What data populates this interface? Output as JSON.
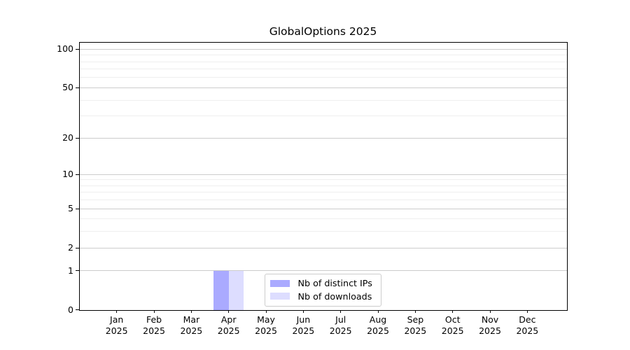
{
  "window": {
    "background_color": "#ffffff"
  },
  "chart_data": {
    "type": "bar",
    "title": "GlobalOptions 2025",
    "xlabel": "",
    "ylabel": "",
    "categories": [
      {
        "month": "Jan",
        "year": "2025"
      },
      {
        "month": "Feb",
        "year": "2025"
      },
      {
        "month": "Mar",
        "year": "2025"
      },
      {
        "month": "Apr",
        "year": "2025"
      },
      {
        "month": "May",
        "year": "2025"
      },
      {
        "month": "Jun",
        "year": "2025"
      },
      {
        "month": "Jul",
        "year": "2025"
      },
      {
        "month": "Aug",
        "year": "2025"
      },
      {
        "month": "Sep",
        "year": "2025"
      },
      {
        "month": "Oct",
        "year": "2025"
      },
      {
        "month": "Nov",
        "year": "2025"
      },
      {
        "month": "Dec",
        "year": "2025"
      }
    ],
    "series": [
      {
        "name": "Nb of distinct IPs",
        "color": "#aaaaff",
        "values": [
          0,
          0,
          0,
          1,
          0,
          0,
          0,
          0,
          0,
          0,
          0,
          0
        ]
      },
      {
        "name": "Nb of downloads",
        "color": "#ddddff",
        "values": [
          0,
          0,
          0,
          1,
          0,
          0,
          0,
          0,
          0,
          0,
          0,
          0
        ]
      }
    ],
    "y_axis": {
      "scale": "log1p",
      "major_ticks": [
        0,
        1,
        2,
        5,
        10,
        20,
        50,
        100
      ],
      "minor_gridlines": [
        3,
        4,
        6,
        7,
        8,
        9,
        30,
        40,
        60,
        70,
        80,
        90
      ],
      "ylim": [
        0,
        113
      ]
    },
    "grid": {
      "horizontal": true,
      "vertical": false,
      "major_color": "#cccccc",
      "minor_color": "#efefef"
    },
    "legend": {
      "position": "lower center",
      "entries": [
        "Nb of distinct IPs",
        "Nb of downloads"
      ]
    }
  }
}
